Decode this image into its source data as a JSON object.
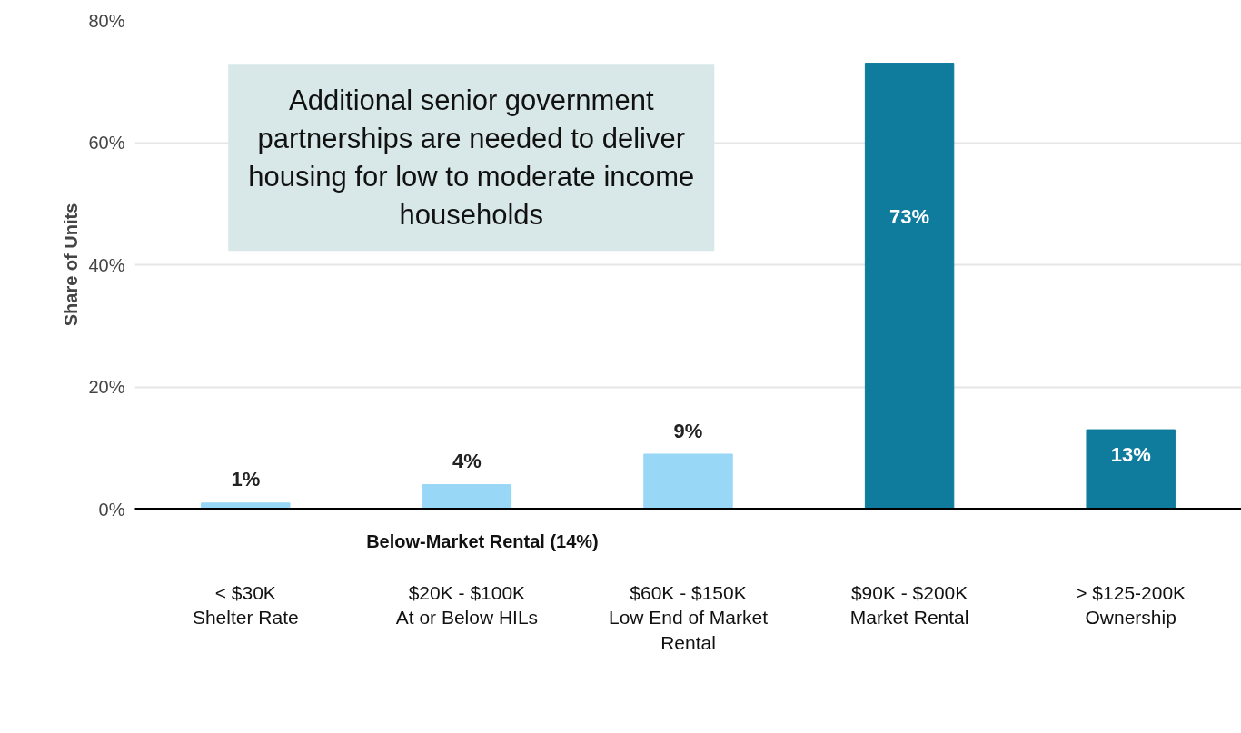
{
  "chart_data": {
    "type": "bar",
    "ylabel": "Share of Units",
    "categories": [
      "< $30K\nShelter Rate",
      "$20K - $100K\nAt or Below HILs",
      "$60K - $150K\nLow End of Market\nRental",
      "$90K - $200K\nMarket Rental",
      "> $125-200K\nOwnership"
    ],
    "values": [
      1,
      4,
      9,
      73,
      13
    ],
    "colors": [
      "#99d7f7",
      "#99d7f7",
      "#99d7f7",
      "#0f7b9d",
      "#0f7b9d"
    ],
    "value_labels": [
      "1%",
      "4%",
      "9%",
      "73%",
      "13%"
    ],
    "ylim": [
      0,
      80
    ],
    "yticks": [
      {
        "value": 0,
        "label": "0%"
      },
      {
        "value": 20,
        "label": "20%"
      },
      {
        "value": 40,
        "label": "40%"
      },
      {
        "value": 60,
        "label": "60%"
      },
      {
        "value": 80,
        "label": "80%"
      }
    ],
    "grid": "y",
    "annotations": [
      "Additional senior government partnerships are needed to deliver housing for low to moderate income households",
      "Below-Market Rental (14%)"
    ]
  }
}
